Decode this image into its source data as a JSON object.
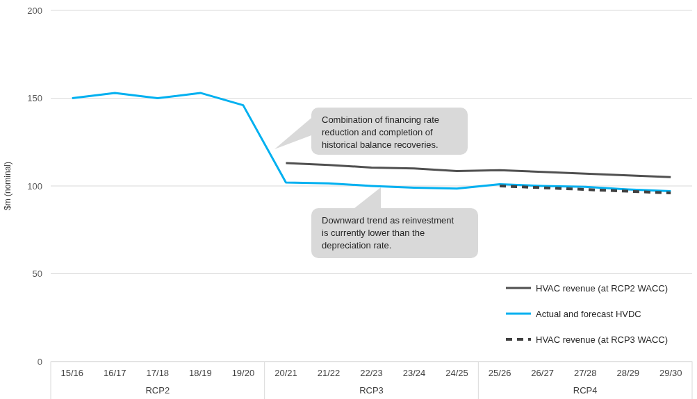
{
  "chart_data": {
    "type": "line",
    "ylabel": "$m (nominal)",
    "categories": [
      "15/16",
      "16/17",
      "17/18",
      "18/19",
      "19/20",
      "20/21",
      "21/22",
      "22/23",
      "23/24",
      "24/25",
      "25/26",
      "26/27",
      "27/28",
      "28/29",
      "29/30"
    ],
    "series": [
      {
        "name": "HVAC revenue (at RCP2 WACC)",
        "color": "#505050",
        "values": [
          null,
          null,
          null,
          null,
          null,
          113,
          112,
          110.5,
          110,
          108.5,
          109,
          108,
          107,
          106,
          105
        ]
      },
      {
        "name": "Actual and forecast HVDC",
        "color": "#00b0f0",
        "values": [
          150,
          153,
          150,
          153,
          146,
          102,
          101.5,
          100,
          99,
          98.5,
          101,
          100,
          99.5,
          98,
          97
        ]
      },
      {
        "name": "HVAC revenue (at RCP3 WACC)",
        "color": "#404040",
        "line_style": "dashed",
        "values": [
          null,
          null,
          null,
          null,
          null,
          null,
          null,
          null,
          null,
          null,
          100,
          99,
          98,
          97,
          96
        ]
      }
    ],
    "ylim": [
      0,
      200
    ],
    "yticks": [
      0,
      50,
      100,
      150,
      200
    ],
    "grid": "y",
    "legend": "bottom right",
    "annotations": [
      "Combination of financing rate reduction and completion of historical balance recoveries.",
      "Downward trend as reinvestment is currently lower than the depreciation rate.",
      "RCP2",
      "RCP3",
      "RCP4"
    ]
  }
}
